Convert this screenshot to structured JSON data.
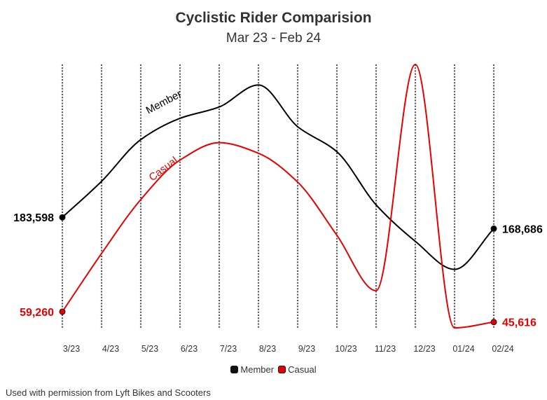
{
  "title": "Cyclistic Rider Comparision",
  "subtitle": "Mar 23 - Feb 24",
  "source": "Used with permission from Lyft Bikes and Scooters",
  "chart_data": {
    "type": "line",
    "title": "Cyclistic Rider Comparision",
    "subtitle": "Mar 23 - Feb 24",
    "categories": [
      "3/23",
      "4/23",
      "5/23",
      "6/23",
      "7/23",
      "8/23",
      "9/23",
      "10/23",
      "11/23",
      "12/23",
      "01/24",
      "02/24"
    ],
    "series": [
      {
        "name": "Member",
        "color": "#000000",
        "label_on_line": "Member",
        "start_label": "183,598",
        "end_label": "168,686",
        "values": [
          183598,
          231000,
          286000,
          314000,
          329000,
          358000,
          303000,
          270000,
          200000,
          152000,
          115000,
          168686
        ]
      },
      {
        "name": "Casual",
        "color": "#e60000",
        "label_on_line": "Casual",
        "start_label": "59,260",
        "end_label": "45,616",
        "values": [
          59260,
          136000,
          207000,
          259000,
          282000,
          268000,
          230000,
          160000,
          87000,
          385000,
          38000,
          45616
        ]
      }
    ],
    "ylim": [
      38000,
      385000
    ],
    "y_axis_visible": false,
    "vertical_gridlines": "dotted",
    "legend": "bottom-center"
  }
}
